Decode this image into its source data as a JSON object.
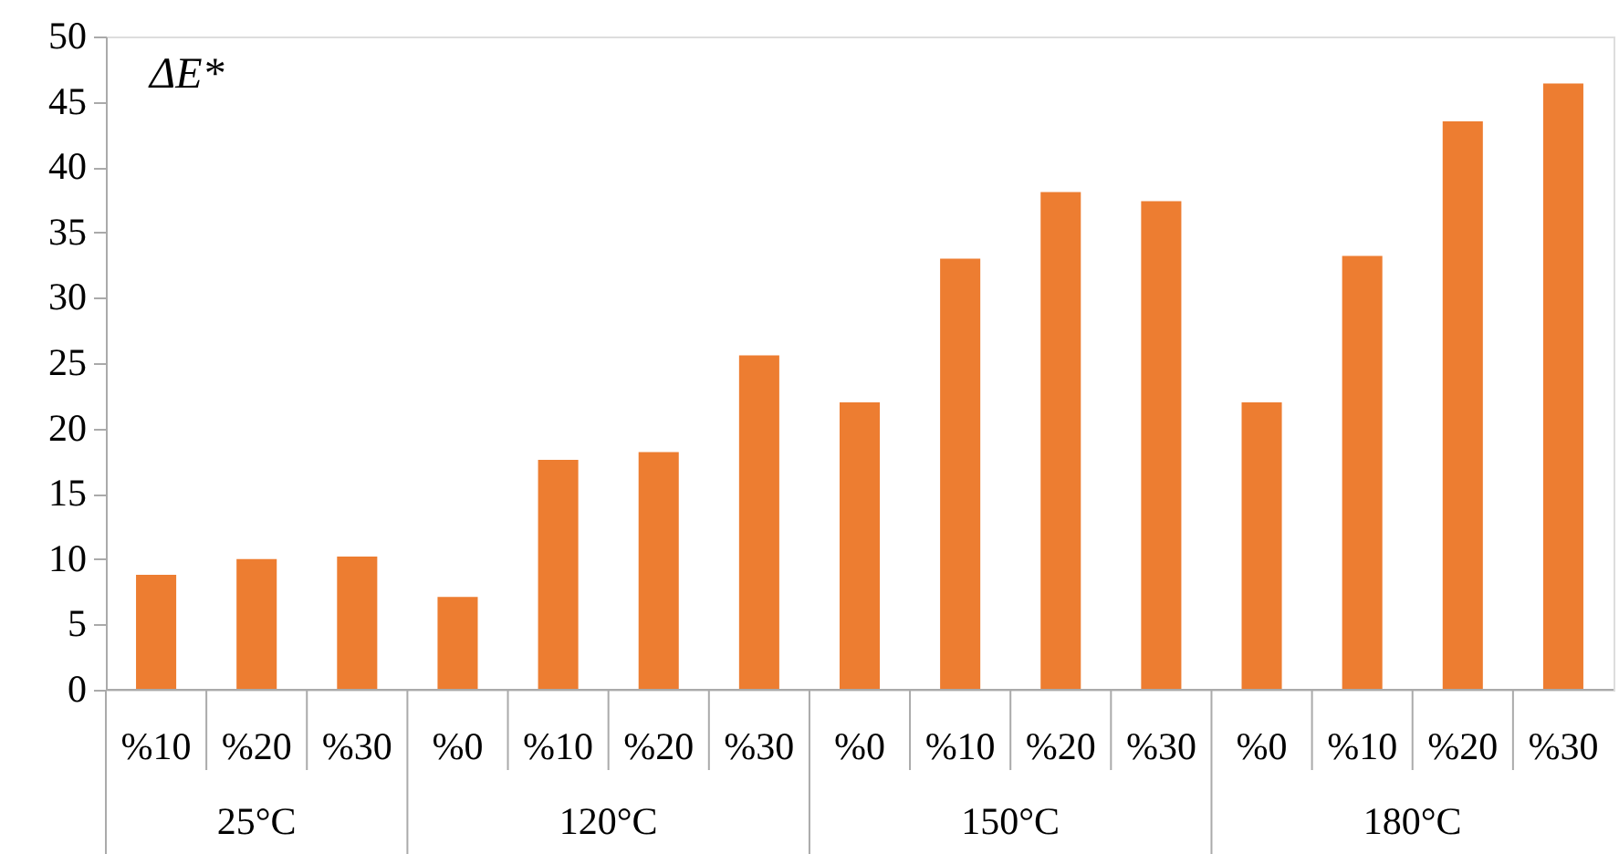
{
  "chart_data": {
    "type": "bar",
    "ylabel": "ΔE*",
    "categories": [
      "%10",
      "%20",
      "%30",
      "%0",
      "%10",
      "%20",
      "%30",
      "%0",
      "%10",
      "%20",
      "%30",
      "%0",
      "%10",
      "%20",
      "%30"
    ],
    "values": [
      8.8,
      10.0,
      10.2,
      7.1,
      17.6,
      18.2,
      25.6,
      22.0,
      33.0,
      38.1,
      37.4,
      22.0,
      33.2,
      43.5,
      46.4
    ],
    "color": "#ed7d31",
    "annotations": [
      "25°C",
      "120°C",
      "150°C",
      "180°C"
    ],
    "ylim": [
      0,
      50
    ],
    "yticks": [
      0,
      5,
      10,
      15,
      20,
      25,
      30,
      35,
      40,
      45,
      50
    ],
    "grid": false
  }
}
